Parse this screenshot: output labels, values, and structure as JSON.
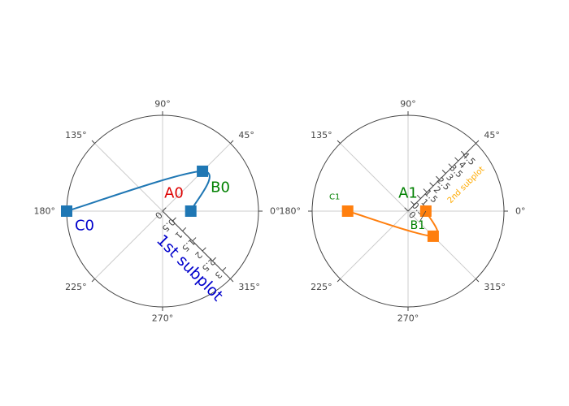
{
  "chart_data": [
    {
      "type": "scatter",
      "subplot": "polar",
      "angular_ticks": [
        "0°",
        "45°",
        "90°",
        "135°",
        "180°",
        "225°",
        "270°",
        "315°"
      ],
      "angular_tick_values": [
        0,
        45,
        90,
        135,
        180,
        225,
        270,
        315
      ],
      "radial_ticks": [
        "0",
        "0.5",
        "1",
        "1.5",
        "2",
        "2.5",
        "3"
      ],
      "radial_tick_values": [
        0,
        0.5,
        1,
        1.5,
        2,
        2.5,
        3
      ],
      "radial_range": [
        0,
        3.4
      ],
      "radial_axis_angle_deg": 315,
      "radial_axis_title": "1st subplot",
      "radial_axis_title_color": "#0000cc",
      "grid": true,
      "series": [
        {
          "color": "#1f77b4",
          "marker": "square",
          "line": "spline",
          "points": [
            {
              "r": 1,
              "theta": 0
            },
            {
              "r": 2,
              "theta": 45
            },
            {
              "r": 3.4,
              "theta": 180
            }
          ]
        }
      ],
      "annotations": [
        {
          "text": "A0",
          "color": "#dd0000",
          "r": 0,
          "theta": 0,
          "dx": 14,
          "dy": -22,
          "size": 18
        },
        {
          "text": "B0",
          "color": "#008000",
          "r": 2,
          "theta": 45,
          "dx": 22,
          "dy": 20,
          "size": 18
        },
        {
          "text": "C0",
          "color": "#0000cc",
          "r": 3.4,
          "theta": 180,
          "dx": 22,
          "dy": 18,
          "size": 18
        }
      ]
    },
    {
      "type": "scatter",
      "subplot": "polar",
      "angular_ticks": [
        "0°",
        "45°",
        "90°",
        "135°",
        "180°",
        "225°",
        "270°",
        "315°"
      ],
      "angular_tick_values": [
        0,
        45,
        90,
        135,
        180,
        225,
        270,
        315
      ],
      "radial_ticks": [
        "0",
        "0.5",
        "1",
        "1.5",
        "2",
        "2.5",
        "3",
        "3.5",
        "4",
        "4.5"
      ],
      "radial_tick_values": [
        0,
        0.5,
        1,
        1.5,
        2,
        2.5,
        3,
        3.5,
        4,
        4.5
      ],
      "radial_range": [
        0,
        5.4
      ],
      "radial_axis_angle_deg": 45,
      "radial_axis_title": "2nd subplot",
      "radial_axis_title_color": "#ffaa00",
      "grid": true,
      "series": [
        {
          "color": "#ff7f0e",
          "marker": "square",
          "line": "spline",
          "points": [
            {
              "r": 1,
              "theta": 0
            },
            {
              "r": 2,
              "theta": 315
            },
            {
              "r": 3.4,
              "theta": 180
            }
          ]
        }
      ],
      "annotations": [
        {
          "text": "A1",
          "color": "#008000",
          "r": 0,
          "theta": 0,
          "dx": 0,
          "dy": -22,
          "size": 18
        },
        {
          "text": "B1",
          "color": "#008000",
          "r": 1,
          "theta": 0,
          "dx": -10,
          "dy": 18,
          "size": 14,
          "arrow": true
        },
        {
          "text": "C1",
          "color": "#008000",
          "r": 3.4,
          "theta": 180,
          "dx": -16,
          "dy": -17,
          "size": 10
        }
      ]
    }
  ]
}
